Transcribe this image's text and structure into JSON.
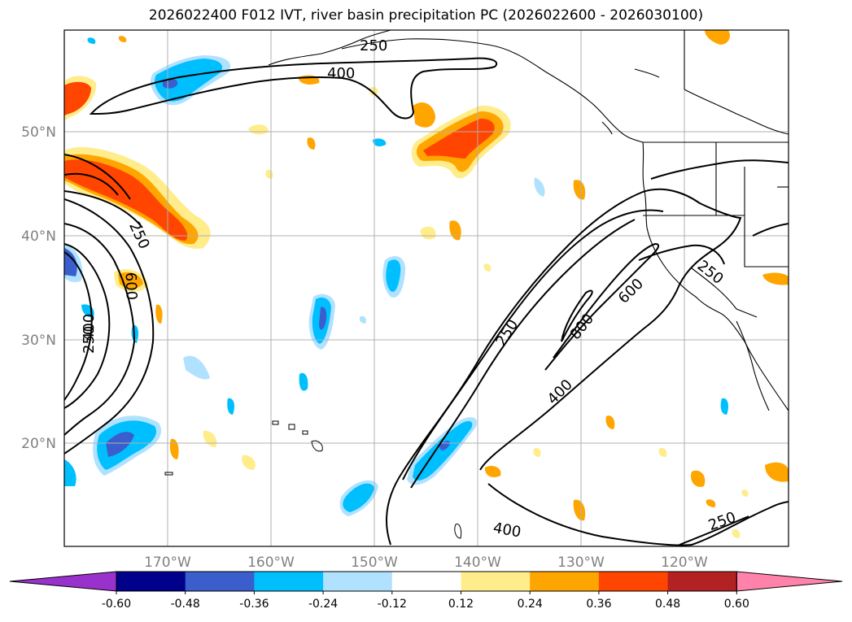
{
  "title": "2026022400 F012 IVT, river basin precipitation PC (2026022600 - 2026030100)",
  "lon_labels": [
    "170°W",
    "160°W",
    "150°W",
    "140°W",
    "130°W",
    "120°W"
  ],
  "lat_labels": [
    "50°N",
    "40°N",
    "30°N",
    "20°N"
  ],
  "contour_labels": [
    "250",
    "400",
    "250",
    "600",
    "400",
    "250",
    "250",
    "600",
    "800",
    "400",
    "400",
    "250"
  ],
  "colorbar": {
    "colors": [
      "#9932cc",
      "#00008b",
      "#3a5fcd",
      "#00bfff",
      "#b0e2ff",
      "#ffffff",
      "#ffec8b",
      "#ffa500",
      "#ff4500",
      "#b22222",
      "#ff82ab"
    ],
    "tick_labels": [
      "-0.60",
      "-0.48",
      "-0.36",
      "-0.24",
      "-0.12",
      "0.12",
      "0.24",
      "0.36",
      "0.48",
      "0.60"
    ]
  }
}
